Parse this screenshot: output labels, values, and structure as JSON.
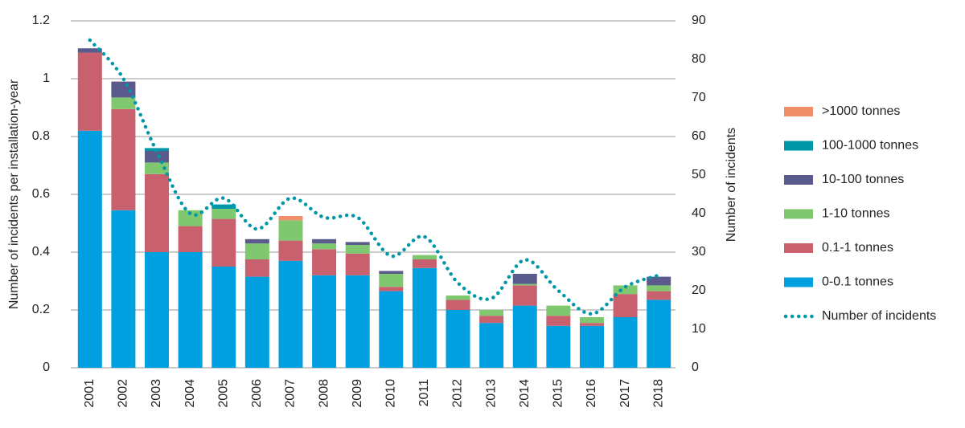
{
  "chart_data": {
    "type": "bar",
    "stacked": true,
    "y_label": "Number of incidents per installation-year",
    "y2_label": "Number of incidents",
    "categories": [
      "2001",
      "2002",
      "2003",
      "2004",
      "2005",
      "2006",
      "2007",
      "2008",
      "2009",
      "2010",
      "2011",
      "2012",
      "2013",
      "2014",
      "2015",
      "2016",
      "2017",
      "2018"
    ],
    "series": [
      {
        "name": "0-0.1 tonnes",
        "color": "#00a0e0",
        "values": [
          0.82,
          0.545,
          0.4,
          0.4,
          0.35,
          0.315,
          0.37,
          0.32,
          0.32,
          0.265,
          0.345,
          0.2,
          0.155,
          0.215,
          0.145,
          0.145,
          0.175,
          0.235
        ]
      },
      {
        "name": "0.1-1 tonnes",
        "color": "#c8606e",
        "values": [
          0.27,
          0.35,
          0.27,
          0.09,
          0.165,
          0.06,
          0.07,
          0.09,
          0.075,
          0.015,
          0.03,
          0.035,
          0.025,
          0.07,
          0.035,
          0.01,
          0.08,
          0.03
        ]
      },
      {
        "name": "1-10 tonnes",
        "color": "#80c870",
        "values": [
          0,
          0.04,
          0.04,
          0.055,
          0.035,
          0.055,
          0.07,
          0.02,
          0.03,
          0.045,
          0.015,
          0.015,
          0.02,
          0.005,
          0.035,
          0.02,
          0.03,
          0.02
        ]
      },
      {
        "name": "10-100 tonnes",
        "color": "#5a5a8c",
        "values": [
          0.015,
          0.055,
          0.04,
          0,
          0,
          0.015,
          0,
          0.015,
          0.01,
          0.01,
          0,
          0,
          0,
          0.035,
          0,
          0,
          0,
          0.03
        ]
      },
      {
        "name": "100-1000 tonnes",
        "color": "#0098a8",
        "values": [
          0,
          0,
          0.01,
          0,
          0.015,
          0,
          0,
          0,
          0,
          0,
          0,
          0,
          0,
          0,
          0,
          0,
          0,
          0
        ]
      },
      {
        "name": ">1000 tonnes",
        "color": "#f0906a",
        "values": [
          0,
          0,
          0,
          0,
          0,
          0,
          0.015,
          0,
          0,
          0,
          0,
          0,
          0,
          0,
          0,
          0,
          0,
          0
        ]
      },
      {
        "name": "Number of incidents",
        "type": "line",
        "axis": "y2",
        "dotted": true,
        "color": "#0098a8",
        "values": [
          85,
          75,
          56,
          40,
          44,
          36,
          44,
          39,
          39,
          29,
          34,
          22,
          18,
          28,
          20,
          14,
          21,
          24
        ]
      }
    ],
    "ylim": [
      0,
      1.2
    ],
    "yticks": [
      0,
      0.2,
      0.4,
      0.6,
      0.8,
      1,
      1.2
    ],
    "y2lim": [
      0,
      90
    ],
    "y2ticks": [
      0,
      10,
      20,
      30,
      40,
      50,
      60,
      70,
      80,
      90
    ],
    "grid": true,
    "legend": "right"
  }
}
